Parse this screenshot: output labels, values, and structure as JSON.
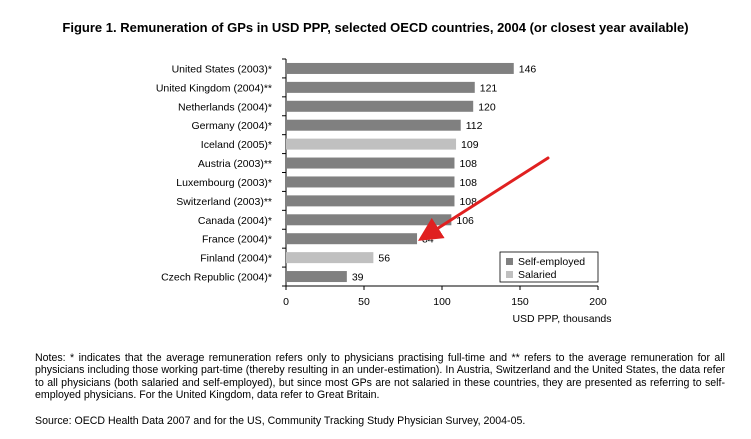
{
  "title": "Figure 1. Remuneration of GPs in USD PPP, selected OECD countries, 2004 (or closest year available)",
  "notes": "Notes: * indicates that the average remuneration refers only to physicians practising full-time and ** refers to the average remuneration for all physicians including those working part-time (thereby resulting in an under-estimation). In Austria, Switzerland and the United States, the data refer to all physicians (both salaried and self-employed), but since most GPs are not salaried in these countries, they are presented as referring to self-employed physicians. For the United Kingdom, data refer to Great Britain.",
  "source": "Source: OECD Health Data 2007 and for the US, Community Tracking Study Physician Survey, 2004-05.",
  "chart_data": {
    "type": "bar",
    "orientation": "horizontal",
    "categories": [
      "United States (2003)*",
      "United Kingdom (2004)**",
      "Netherlands (2004)*",
      "Germany (2004)*",
      "Iceland (2005)*",
      "Austria (2003)**",
      "Luxembourg (2003)*",
      "Switzerland (2003)**",
      "Canada (2004)*",
      "France (2004)*",
      "Finland (2004)*",
      "Czech Republic (2004)*"
    ],
    "values": [
      146,
      121,
      120,
      112,
      109,
      108,
      108,
      108,
      106,
      84,
      56,
      39
    ],
    "value_labels": [
      "146",
      "121",
      "120",
      "112",
      "109",
      "108",
      "108",
      "108",
      "106",
      "84",
      "56",
      "39"
    ],
    "bar_type": [
      "Self-employed",
      "Self-employed",
      "Self-employed",
      "Self-employed",
      "Salaried",
      "Self-employed",
      "Self-employed",
      "Self-employed",
      "Self-employed",
      "Self-employed",
      "Salaried",
      "Self-employed"
    ],
    "legend": [
      {
        "name": "Self-employed",
        "color": "#808080"
      },
      {
        "name": "Salaried",
        "color": "#c0c0c0"
      }
    ],
    "legend_position": "bottom-right",
    "xlabel": "USD PPP, thousands",
    "xlim": [
      0,
      200
    ],
    "xticks": [
      0,
      50,
      100,
      150,
      200
    ],
    "grid": false,
    "annotation": {
      "type": "red arrow",
      "points_to": "France (2004)*",
      "color": "#e02020"
    }
  }
}
